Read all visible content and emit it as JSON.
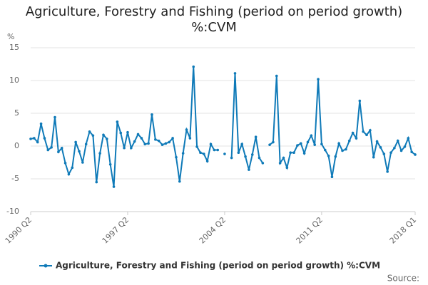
{
  "chart_data": {
    "type": "line",
    "title": "Agriculture, Forestry and Fishing (period on period growth) %:CVM",
    "y_label": "%",
    "source": "Source:",
    "categories": [
      "1990 Q2",
      null,
      null,
      null,
      null,
      null,
      null,
      null,
      null,
      null,
      null,
      null,
      null,
      null,
      null,
      null,
      null,
      null,
      null,
      null,
      null,
      null,
      null,
      null,
      null,
      null,
      null,
      null,
      "1997 Q2",
      null,
      null,
      null,
      null,
      null,
      null,
      null,
      null,
      null,
      null,
      null,
      null,
      null,
      null,
      null,
      null,
      null,
      null,
      null,
      null,
      null,
      null,
      null,
      null,
      null,
      null,
      null,
      "2004 Q2",
      null,
      null,
      null,
      null,
      null,
      null,
      null,
      null,
      null,
      null,
      null,
      null,
      null,
      null,
      null,
      null,
      null,
      null,
      null,
      null,
      null,
      null,
      null,
      null,
      null,
      null,
      null,
      "2011 Q2",
      null,
      null,
      null,
      null,
      null,
      null,
      null,
      null,
      null,
      null,
      null,
      null,
      null,
      null,
      null,
      null,
      null,
      null,
      null,
      null,
      null,
      null,
      null,
      null,
      null,
      null,
      "2018 Q1"
    ],
    "series": [
      {
        "name": "Agriculture, Forestry and Fishing (period on period growth) %:CVM",
        "color": "#0f7ab8",
        "values": [
          1.1,
          1.2,
          0.6,
          3.4,
          1.2,
          -0.6,
          -0.2,
          4.4,
          -0.9,
          -0.3,
          -2.6,
          -4.3,
          -3.3,
          0.6,
          -0.8,
          -2.5,
          0.3,
          2.2,
          1.6,
          -5.5,
          -1.1,
          1.7,
          1.1,
          -2.8,
          -6.2,
          3.7,
          2.0,
          -0.3,
          2.1,
          -0.3,
          0.7,
          1.8,
          1.2,
          0.3,
          0.4,
          4.8,
          1.0,
          0.8,
          0.2,
          0.4,
          0.6,
          1.2,
          -1.7,
          -5.4,
          -1.1,
          2.5,
          1.2,
          12.1,
          -0.1,
          -1.0,
          -1.2,
          -2.3,
          0.3,
          -0.6,
          -0.6,
          null,
          -1.2,
          null,
          -1.8,
          11.1,
          -1.0,
          0.3,
          -1.6,
          -3.6,
          -1.3,
          1.4,
          -1.8,
          -2.6,
          null,
          0.2,
          0.6,
          10.7,
          -2.6,
          -1.8,
          -3.3,
          -1.0,
          -1.0,
          0.1,
          0.4,
          -1.1,
          0.6,
          1.6,
          0.2,
          10.2,
          0.3,
          -0.6,
          -1.5,
          -4.7,
          -1.6,
          0.4,
          -0.7,
          -0.5,
          0.8,
          2.0,
          1.2,
          6.9,
          2.2,
          1.7,
          2.4,
          -1.7,
          0.7,
          -0.2,
          -1.2,
          -3.9,
          -1.0,
          -0.3,
          0.8,
          -0.7,
          -0.1,
          1.2,
          -0.9,
          -1.3
        ]
      }
    ],
    "ylim": [
      -10,
      15
    ],
    "yticks": [
      -10,
      -5,
      0,
      5,
      10,
      15
    ],
    "grid": true,
    "legend": "bottom"
  }
}
